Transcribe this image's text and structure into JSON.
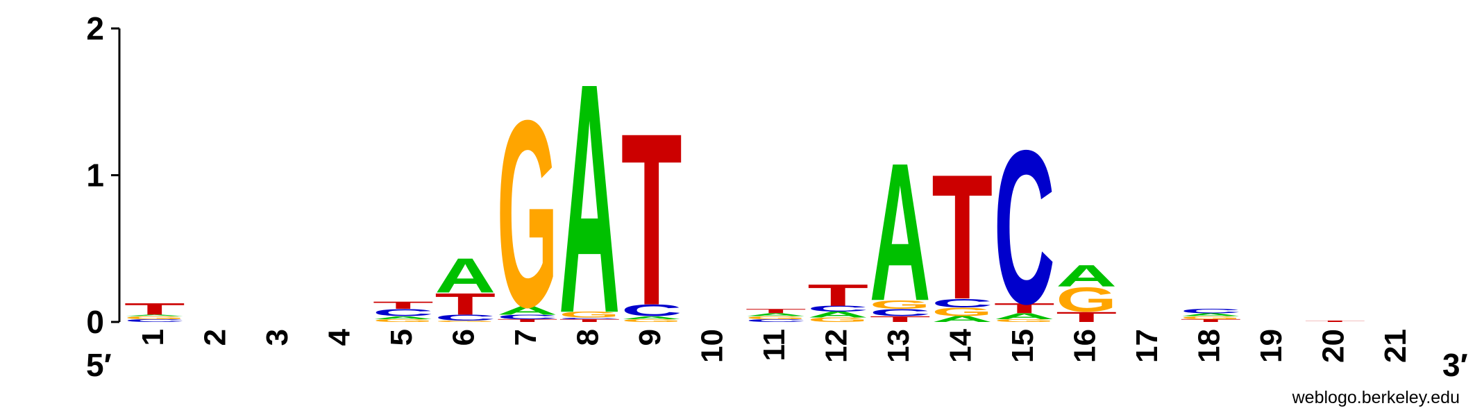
{
  "chart_data": {
    "type": "sequence-logo",
    "y_ticks": [
      "0",
      "1",
      "2"
    ],
    "y_range": [
      0,
      2
    ],
    "end_labels": {
      "left": "5′",
      "right": "3′"
    },
    "credit": "weblogo.berkeley.edu",
    "colors": {
      "A": "#00c000",
      "C": "#0000cc",
      "G": "#ffa500",
      "T": "#cc0000"
    },
    "positions": [
      {
        "label": "1",
        "stack": [
          [
            "C",
            0.02
          ],
          [
            "G",
            0.02
          ],
          [
            "A",
            0.01
          ],
          [
            "T",
            0.08
          ]
        ]
      },
      {
        "label": "2",
        "stack": []
      },
      {
        "label": "3",
        "stack": []
      },
      {
        "label": "4",
        "stack": []
      },
      {
        "label": "5",
        "stack": [
          [
            "G",
            0.02
          ],
          [
            "A",
            0.02
          ],
          [
            "C",
            0.05
          ],
          [
            "T",
            0.05
          ]
        ]
      },
      {
        "label": "6",
        "stack": [
          [
            "G",
            0.01
          ],
          [
            "C",
            0.04
          ],
          [
            "T",
            0.15
          ],
          [
            "A",
            0.24
          ]
        ]
      },
      {
        "label": "7",
        "stack": [
          [
            "T",
            0.02
          ],
          [
            "C",
            0.03
          ],
          [
            "A",
            0.06
          ],
          [
            "G",
            1.3
          ]
        ]
      },
      {
        "label": "8",
        "stack": [
          [
            "T",
            0.02
          ],
          [
            "C",
            0.01
          ],
          [
            "G",
            0.04
          ],
          [
            "A",
            1.6
          ]
        ]
      },
      {
        "label": "9",
        "stack": [
          [
            "G",
            0.02
          ],
          [
            "A",
            0.02
          ],
          [
            "C",
            0.08
          ],
          [
            "T",
            1.2
          ]
        ]
      },
      {
        "label": "10",
        "stack": []
      },
      {
        "label": "11",
        "stack": [
          [
            "C",
            0.02
          ],
          [
            "G",
            0.02
          ],
          [
            "A",
            0.02
          ],
          [
            "T",
            0.03
          ]
        ]
      },
      {
        "label": "12",
        "stack": [
          [
            "G",
            0.03
          ],
          [
            "A",
            0.04
          ],
          [
            "C",
            0.04
          ],
          [
            "T",
            0.15
          ]
        ]
      },
      {
        "label": "13",
        "stack": [
          [
            "T",
            0.04
          ],
          [
            "C",
            0.05
          ],
          [
            "G",
            0.06
          ],
          [
            "A",
            0.96
          ]
        ]
      },
      {
        "label": "14",
        "stack": [
          [
            "A",
            0.04
          ],
          [
            "G",
            0.06
          ],
          [
            "C",
            0.06
          ],
          [
            "T",
            0.87
          ]
        ]
      },
      {
        "label": "15",
        "stack": [
          [
            "G",
            0.02
          ],
          [
            "A",
            0.04
          ],
          [
            "T",
            0.07
          ],
          [
            "C",
            1.07
          ]
        ]
      },
      {
        "label": "16",
        "stack": [
          [
            "T",
            0.07
          ],
          [
            "G",
            0.17
          ],
          [
            "A",
            0.15
          ]
        ]
      },
      {
        "label": "17",
        "stack": []
      },
      {
        "label": "18",
        "stack": [
          [
            "T",
            0.02
          ],
          [
            "G",
            0.02
          ],
          [
            "A",
            0.02
          ],
          [
            "C",
            0.03
          ]
        ]
      },
      {
        "label": "19",
        "stack": []
      },
      {
        "label": "20",
        "stack": [
          [
            "T",
            0.01
          ]
        ]
      },
      {
        "label": "21",
        "stack": []
      }
    ]
  }
}
